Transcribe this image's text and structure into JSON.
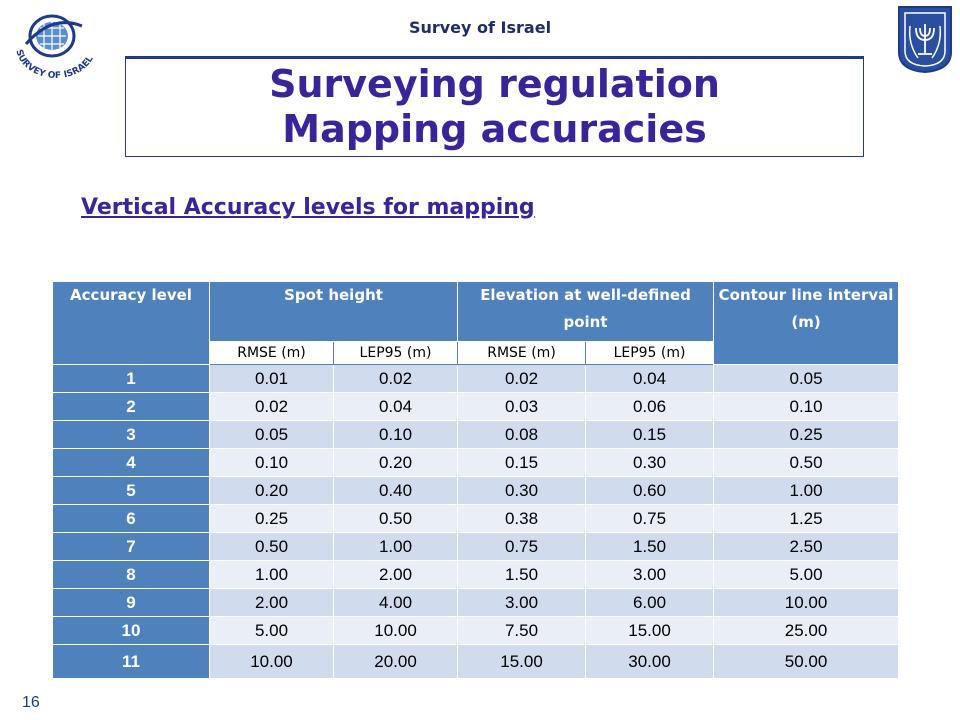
{
  "header": {
    "org": "Survey of Israel",
    "logo_text": "SURVEY OF ISRAEL",
    "title_line1": "Surveying regulation",
    "title_line2": "Mapping accuracies"
  },
  "subtitle": "Vertical Accuracy levels for mapping",
  "table": {
    "headers": {
      "accuracy_level": "Accuracy level",
      "spot_height": "Spot height",
      "elevation": "Elevation at well-defined point",
      "contour": "Contour line interval (m)"
    },
    "subheaders": [
      "RMSE (m)",
      "LEP95 (m)",
      "RMSE (m)",
      "LEP95 (m)"
    ],
    "rows": [
      [
        "1",
        "0.01",
        "0.02",
        "0.02",
        "0.04",
        "0.05"
      ],
      [
        "2",
        "0.02",
        "0.04",
        "0.03",
        "0.06",
        "0.10"
      ],
      [
        "3",
        "0.05",
        "0.10",
        "0.08",
        "0.15",
        "0.25"
      ],
      [
        "4",
        "0.10",
        "0.20",
        "0.15",
        "0.30",
        "0.50"
      ],
      [
        "5",
        "0.20",
        "0.40",
        "0.30",
        "0.60",
        "1.00"
      ],
      [
        "6",
        "0.25",
        "0.50",
        "0.38",
        "0.75",
        "1.25"
      ],
      [
        "7",
        "0.50",
        "1.00",
        "0.75",
        "1.50",
        "2.50"
      ],
      [
        "8",
        "1.00",
        "2.00",
        "1.50",
        "3.00",
        "5.00"
      ],
      [
        "9",
        "2.00",
        "4.00",
        "3.00",
        "6.00",
        "10.00"
      ],
      [
        "10",
        "5.00",
        "10.00",
        "7.50",
        "15.00",
        "25.00"
      ],
      [
        "11",
        "10.00",
        "20.00",
        "15.00",
        "30.00",
        "50.00"
      ]
    ]
  },
  "page_number": "16",
  "colors": {
    "title": "#3b2399",
    "header_fill": "#4f81bd",
    "row_odd": "#d0dcee",
    "row_even": "#e9eef7"
  }
}
